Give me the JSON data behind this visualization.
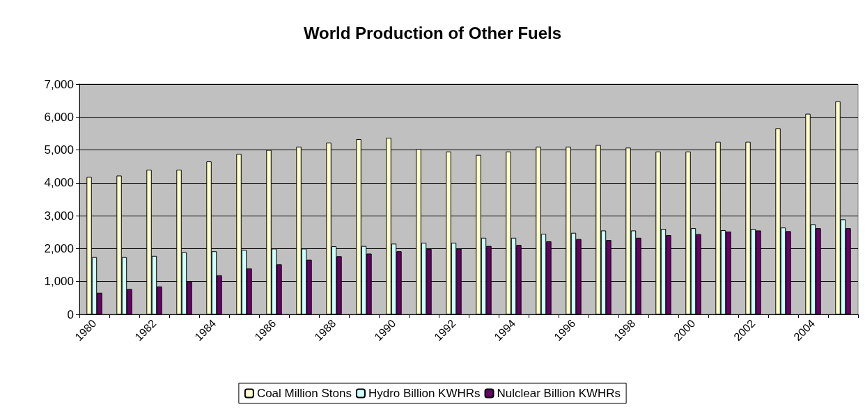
{
  "chart_data": {
    "type": "bar",
    "title": "World Production of Other Fuels",
    "categories": [
      "1980",
      null,
      "1982",
      null,
      "1984",
      null,
      "1986",
      null,
      "1988",
      null,
      "1990",
      null,
      "1992",
      null,
      "1994",
      null,
      "1996",
      null,
      "1998",
      null,
      "2000",
      null,
      "2002",
      null,
      "2004",
      null
    ],
    "series": [
      {
        "name": "Coal Million Stons",
        "color": "#ffffcc",
        "values": [
          4180,
          4220,
          4400,
          4400,
          4650,
          4880,
          5000,
          5100,
          5220,
          5330,
          5370,
          5030,
          4950,
          4850,
          4950,
          5100,
          5100,
          5150,
          5070,
          4950,
          4950,
          5250,
          5250,
          5660,
          6100,
          6480
        ]
      },
      {
        "name": "Hydro Billion KWHRs",
        "color": "#ccffff",
        "values": [
          1740,
          1740,
          1780,
          1890,
          1920,
          1960,
          2000,
          2000,
          2070,
          2080,
          2150,
          2180,
          2180,
          2330,
          2330,
          2450,
          2480,
          2550,
          2550,
          2600,
          2620,
          2560,
          2600,
          2640,
          2740,
          2890
        ]
      },
      {
        "name": "Nulclear Billion KWHRs",
        "color": "#660066",
        "values": [
          660,
          770,
          850,
          1000,
          1190,
          1400,
          1520,
          1660,
          1770,
          1850,
          1920,
          1990,
          2000,
          2080,
          2110,
          2220,
          2290,
          2260,
          2330,
          2410,
          2440,
          2520,
          2550,
          2530,
          2620,
          2620
        ]
      }
    ],
    "ylim": [
      0,
      7000
    ],
    "yticks": [
      {
        "value": 0,
        "label": "0"
      },
      {
        "value": 1000,
        "label": "1,000"
      },
      {
        "value": 2000,
        "label": "2,000"
      },
      {
        "value": 3000,
        "label": "3,000"
      },
      {
        "value": 4000,
        "label": "4,000"
      },
      {
        "value": 5000,
        "label": "5,000"
      },
      {
        "value": 6000,
        "label": "6,000"
      },
      {
        "value": 7000,
        "label": "7,000"
      }
    ],
    "grid": "y",
    "legend": "bottom"
  }
}
